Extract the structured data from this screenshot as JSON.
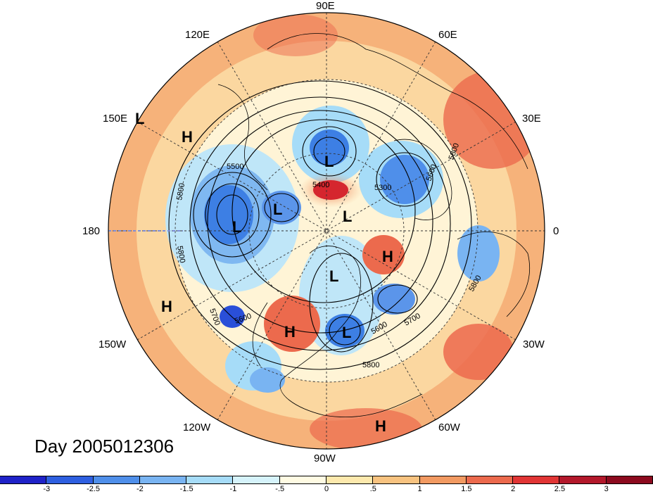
{
  "title": "Day 2005012306",
  "longitude_labels": {
    "n90e": "90E",
    "e120": "120E",
    "e60": "60E",
    "e150": "150E",
    "e30": "30E",
    "w180": "180",
    "e0": "0",
    "w150": "150W",
    "w30": "30W",
    "w120": "120W",
    "w60": "60W",
    "w90": "90W"
  },
  "pressure_centers": [
    "L",
    "H",
    "L",
    "L",
    "L",
    "L",
    "H",
    "L",
    "H",
    "H",
    "L",
    "H"
  ],
  "contour_labels": [
    "5500",
    "5400",
    "5300",
    "5600",
    "5800",
    "5800",
    "5800",
    "5700",
    "5600",
    "5600",
    "5700",
    "5800",
    "5800"
  ],
  "colorbar": {
    "ticks": [
      "-3",
      "-2.5",
      "-2",
      "-1.5",
      "-1",
      "-.5",
      "0",
      ".5",
      "1",
      "1.5",
      "2",
      "2.5",
      "3"
    ],
    "colors": [
      "#1f22c8",
      "#2e5fe0",
      "#4f8fea",
      "#79b4f2",
      "#a6dcf8",
      "#d6f3fb",
      "#fffbe3",
      "#fde9ad",
      "#f8c380",
      "#f29a62",
      "#ec6a4d",
      "#e13535",
      "#b3182b",
      "#8c0a1e"
    ]
  }
}
